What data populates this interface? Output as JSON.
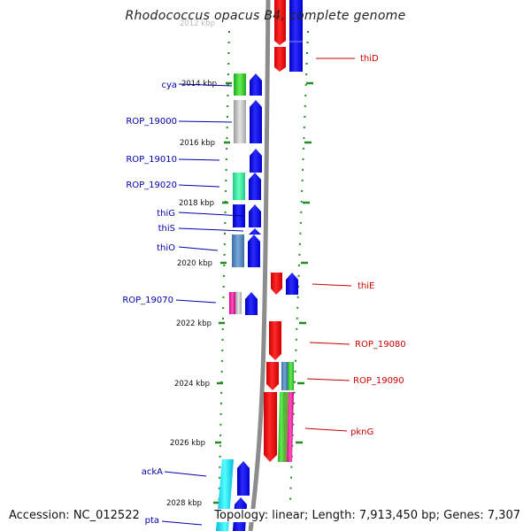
{
  "title": "Rhodococcus opacus B4, complete genome",
  "accession": "Accession: NC_012522",
  "summary": "Topology: linear; Length: 7,913,450 bp; Genes: 7,307",
  "colors": {
    "plus_strand": "#0000ee",
    "minus_strand": "#ee0000",
    "label_left": "#0000aa",
    "label_right": "#cc0000",
    "axis_dots": "#228b22"
  },
  "coordinate_ticks": [
    "2012 kbp",
    "2014 kbp",
    "2016 kbp",
    "2018 kbp",
    "2020 kbp",
    "2022 kbp",
    "2024 kbp",
    "2026 kbp",
    "2028 kbp"
  ],
  "genes_left": [
    {
      "label": "cya"
    },
    {
      "label": "ROP_19000"
    },
    {
      "label": "ROP_19010"
    },
    {
      "label": "ROP_19020"
    },
    {
      "label": "thiG"
    },
    {
      "label": "thiS"
    },
    {
      "label": "thiO"
    },
    {
      "label": "ROP_19070"
    },
    {
      "label": "ackA"
    },
    {
      "label": "pta"
    }
  ],
  "genes_right": [
    {
      "label": "thiD"
    },
    {
      "label": "thiE"
    },
    {
      "label": "ROP_19080"
    },
    {
      "label": "ROP_19090"
    },
    {
      "label": "pknG"
    }
  ]
}
